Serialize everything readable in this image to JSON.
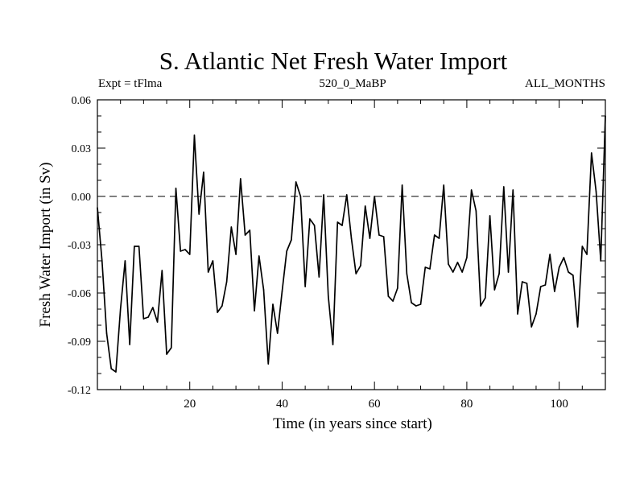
{
  "chart_data": {
    "type": "line",
    "title": "S. Atlantic Net Fresh Water Import",
    "subtitle_left": "Expt = tFlma",
    "subtitle_center": "520_0_MaBP",
    "subtitle_right": "ALL_MONTHS",
    "xlabel": "Time (in years since start)",
    "ylabel": "Fresh Water Import (in Sv)",
    "xlim": [
      0,
      110
    ],
    "ylim": [
      -0.12,
      0.06
    ],
    "x_ticks": [
      20,
      40,
      60,
      80,
      100
    ],
    "x_tick_labels": [
      "20",
      "40",
      "60",
      "80",
      "100"
    ],
    "y_ticks": [
      0.06,
      0.03,
      0.0,
      -0.03,
      -0.06,
      -0.09,
      -0.12
    ],
    "y_tick_labels": [
      "0.06",
      "0.03",
      "0.00",
      "-0.03",
      "-0.06",
      "-0.09",
      "-0.12"
    ],
    "reference_line": 0.0,
    "series": [
      {
        "name": "Net Fresh Water Import",
        "x": [
          0,
          1,
          2,
          3,
          4,
          5,
          6,
          7,
          8,
          9,
          10,
          11,
          12,
          13,
          14,
          15,
          16,
          17,
          18,
          19,
          20,
          21,
          22,
          23,
          24,
          25,
          26,
          27,
          28,
          29,
          30,
          31,
          32,
          33,
          34,
          35,
          36,
          37,
          38,
          39,
          40,
          41,
          42,
          43,
          44,
          45,
          46,
          47,
          48,
          49,
          50,
          51,
          52,
          53,
          54,
          55,
          56,
          57,
          58,
          59,
          60,
          61,
          62,
          63,
          64,
          65,
          66,
          67,
          68,
          69,
          70,
          71,
          72,
          73,
          74,
          75,
          76,
          77,
          78,
          79,
          80,
          81,
          82,
          83,
          84,
          85,
          86,
          87,
          88,
          89,
          90,
          91,
          92,
          93,
          94,
          95,
          96,
          97,
          98,
          99,
          100,
          101,
          102,
          103,
          104,
          105,
          106,
          107,
          108,
          109,
          110
        ],
        "values": [
          -0.007,
          -0.04,
          -0.085,
          -0.107,
          -0.109,
          -0.07,
          -0.04,
          -0.092,
          -0.031,
          -0.031,
          -0.076,
          -0.075,
          -0.069,
          -0.078,
          -0.046,
          -0.098,
          -0.094,
          0.005,
          -0.034,
          -0.033,
          -0.036,
          0.038,
          -0.011,
          0.015,
          -0.047,
          -0.04,
          -0.072,
          -0.068,
          -0.053,
          -0.019,
          -0.036,
          0.011,
          -0.024,
          -0.021,
          -0.071,
          -0.037,
          -0.058,
          -0.104,
          -0.067,
          -0.085,
          -0.059,
          -0.034,
          -0.027,
          0.009,
          0.0,
          -0.056,
          -0.014,
          -0.018,
          -0.05,
          0.001,
          -0.062,
          -0.092,
          -0.016,
          -0.018,
          0.001,
          -0.026,
          -0.048,
          -0.043,
          -0.006,
          -0.026,
          0.0,
          -0.024,
          -0.025,
          -0.062,
          -0.065,
          -0.057,
          0.007,
          -0.048,
          -0.066,
          -0.068,
          -0.067,
          -0.044,
          -0.045,
          -0.024,
          -0.026,
          0.007,
          -0.042,
          -0.047,
          -0.041,
          -0.047,
          -0.038,
          0.004,
          -0.009,
          -0.068,
          -0.063,
          -0.012,
          -0.058,
          -0.048,
          0.006,
          -0.047,
          0.004,
          -0.073,
          -0.053,
          -0.054,
          -0.081,
          -0.073,
          -0.056,
          -0.055,
          -0.036,
          -0.059,
          -0.044,
          -0.038,
          -0.047,
          -0.049,
          -0.081,
          -0.031,
          -0.036,
          0.027,
          0.003,
          -0.04,
          0.05
        ]
      }
    ]
  }
}
